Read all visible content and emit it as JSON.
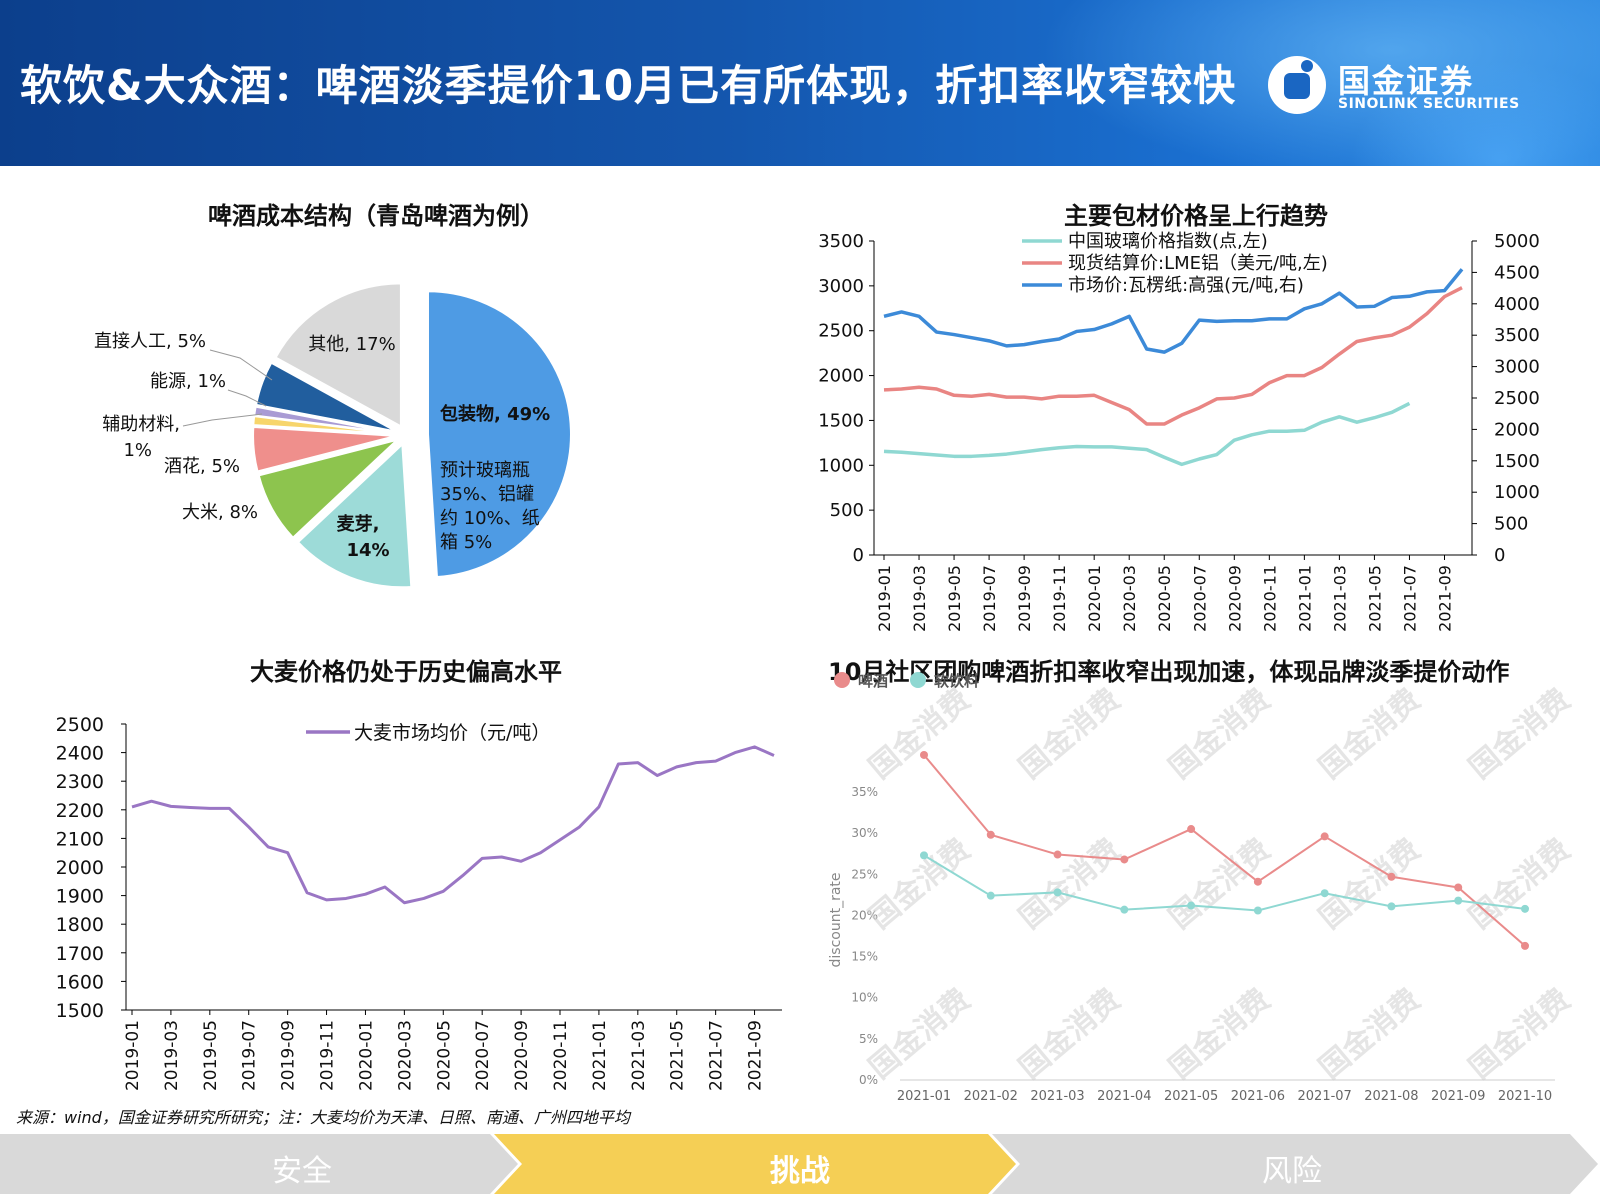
{
  "header": {
    "title": "软饮&大众酒：啤酒淡季提价10月已有所体现，折扣率收窄较快",
    "logo_cn": "国金证券",
    "logo_en": "SINOLINK SECURITIES"
  },
  "source_note": "来源：wind，国金证券研究所研究；注：大麦均价为天津、日照、南通、广州四地平均",
  "nav": {
    "items": [
      "安全",
      "挑战",
      "风险"
    ],
    "active_index": 1
  },
  "colors": {
    "header_blue": "#1456ad",
    "nav_active": "#f5cf55",
    "nav_inactive": "#d9d9d9"
  },
  "watermark": "国金消费",
  "chart_data": [
    {
      "type": "pie",
      "title": "啤酒成本结构（青岛啤酒为例）",
      "slices": [
        {
          "label": "包装物, 49%",
          "value": 49,
          "color": "#4e9be4",
          "note": "预计玻璃瓶35%、铝罐约10%、纸箱 5%"
        },
        {
          "label": "麦芽, 14%",
          "value": 14,
          "color": "#9ddbd8"
        },
        {
          "label": "大米, 8%",
          "value": 8,
          "color": "#8dc44e"
        },
        {
          "label": "酒花, 5%",
          "value": 5,
          "color": "#ef8f8c"
        },
        {
          "label": "辅助材料, 1%",
          "value": 1,
          "color": "#f7d56b"
        },
        {
          "label": "能源, 1%",
          "value": 1,
          "color": "#a99bd4"
        },
        {
          "label": "直接人工, 5%",
          "value": 5,
          "color": "#215e9e"
        },
        {
          "label": "其他, 17%",
          "value": 17,
          "color": "#d9d9d9"
        }
      ]
    },
    {
      "type": "line",
      "title": "主要包材价格呈上行趋势",
      "x_ticks": [
        "2019-01",
        "2019-03",
        "2019-05",
        "2019-07",
        "2019-09",
        "2019-11",
        "2020-01",
        "2020-03",
        "2020-05",
        "2020-07",
        "2020-09",
        "2020-11",
        "2021-01",
        "2021-03",
        "2021-05",
        "2021-07",
        "2021-09"
      ],
      "ylim_left": [
        0,
        3500
      ],
      "yticks_left": [
        "0",
        "500",
        "1000",
        "1500",
        "2000",
        "2500",
        "3000",
        "3500"
      ],
      "ylim_right": [
        0,
        5000
      ],
      "yticks_right": [
        "0",
        "500",
        "1000",
        "1500",
        "2000",
        "2500",
        "3000",
        "3500",
        "4000",
        "4500",
        "5000"
      ],
      "legend_position": "top-left",
      "series": [
        {
          "name": "中国玻璃价格指数(点,左)",
          "axis": "left",
          "color": "#8fd8d2",
          "values": [
            1155,
            1145,
            1130,
            1115,
            1100,
            1100,
            1110,
            1125,
            1150,
            1175,
            1195,
            1210,
            1205,
            1205,
            1190,
            1175,
            1090,
            1010,
            1070,
            1120,
            1280,
            1340,
            1380,
            1380,
            1390,
            1480,
            1540,
            1480,
            1530,
            1590,
            1690
          ]
        },
        {
          "name": "现货结算价:LME铝（美元/吨,左)",
          "axis": "left",
          "color": "#e98583",
          "values": [
            1840,
            1850,
            1870,
            1850,
            1780,
            1770,
            1790,
            1760,
            1760,
            1740,
            1770,
            1770,
            1780,
            1700,
            1620,
            1460,
            1460,
            1560,
            1640,
            1740,
            1750,
            1790,
            1920,
            2000,
            2000,
            2090,
            2240,
            2380,
            2420,
            2450,
            2540,
            2690,
            2880,
            2980
          ]
        },
        {
          "name": "市场价:瓦楞纸:高强(元/吨,右)",
          "axis": "right",
          "color": "#3c8ad8",
          "values": [
            3800,
            3870,
            3800,
            3550,
            3510,
            3460,
            3410,
            3330,
            3350,
            3400,
            3440,
            3560,
            3590,
            3680,
            3800,
            3280,
            3230,
            3370,
            3740,
            3720,
            3730,
            3730,
            3760,
            3760,
            3920,
            4000,
            4170,
            3950,
            3960,
            4100,
            4120,
            4190,
            4210,
            4550
          ]
        }
      ]
    },
    {
      "type": "line",
      "title": "大麦价格仍处于历史偏高水平",
      "x_ticks": [
        "2019-01",
        "2019-03",
        "2019-05",
        "2019-07",
        "2019-09",
        "2019-11",
        "2020-01",
        "2020-03",
        "2020-05",
        "2020-07",
        "2020-09",
        "2020-11",
        "2021-01",
        "2021-03",
        "2021-05",
        "2021-07",
        "2021-09"
      ],
      "ylim": [
        1500,
        2500
      ],
      "yticks": [
        "1500",
        "1600",
        "1700",
        "1800",
        "1900",
        "2000",
        "2100",
        "2200",
        "2300",
        "2400",
        "2500"
      ],
      "legend_position": "top-center",
      "series": [
        {
          "name": "大麦市场均价（元/吨）",
          "color": "#9a76c4",
          "values": [
            2210,
            2230,
            2212,
            2208,
            2205,
            2205,
            2140,
            2070,
            2050,
            1910,
            1885,
            1890,
            1905,
            1930,
            1875,
            1890,
            1915,
            1970,
            2030,
            2035,
            2020,
            2050,
            2095,
            2140,
            2210,
            2360,
            2365,
            2320,
            2350,
            2365,
            2370,
            2400,
            2420,
            2390
          ]
        }
      ]
    },
    {
      "type": "line",
      "title": "10月社区团购啤酒折扣率收窄出现加速，体现品牌淡季提价动作",
      "categories": [
        "2021-01",
        "2021-02",
        "2021-03",
        "2021-04",
        "2021-05",
        "2021-06",
        "2021-07",
        "2021-08",
        "2021-09",
        "2021-10"
      ],
      "ylabel": "discount_rate",
      "ylim": [
        0,
        35
      ],
      "yticks": [
        "0%",
        "5%",
        "10%",
        "15%",
        "20%",
        "25%",
        "30%",
        "35%"
      ],
      "legend_position": "top-left",
      "series": [
        {
          "name": "啤酒",
          "color": "#e98b8b",
          "values": [
            39.5,
            29.8,
            27.4,
            26.8,
            30.5,
            24.1,
            29.6,
            24.7,
            23.4,
            16.3
          ]
        },
        {
          "name": "软饮料",
          "color": "#8fd8d2",
          "values": [
            27.3,
            22.4,
            22.8,
            20.7,
            21.2,
            20.6,
            22.7,
            21.1,
            21.8,
            20.8
          ]
        }
      ]
    }
  ]
}
